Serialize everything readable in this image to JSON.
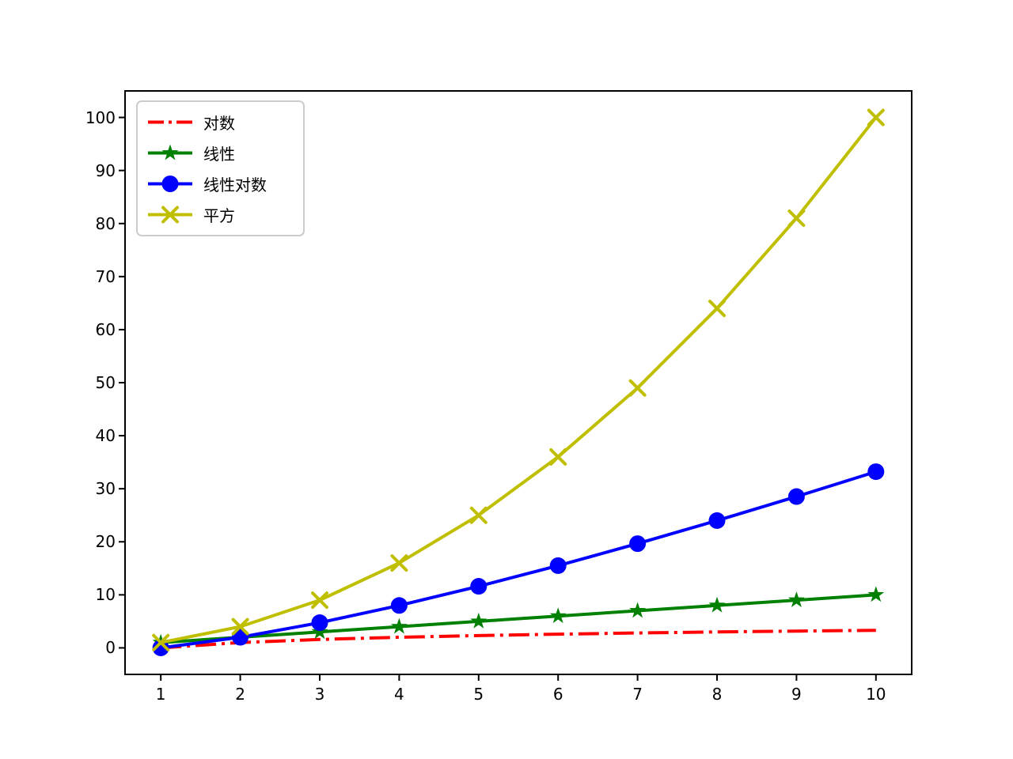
{
  "chart_data": {
    "type": "line",
    "title": "",
    "xlabel": "",
    "ylabel": "",
    "x": [
      1,
      2,
      3,
      4,
      5,
      6,
      7,
      8,
      9,
      10
    ],
    "series": [
      {
        "name": "对数",
        "color": "#ff0000",
        "linestyle": "dashdot",
        "marker": "none",
        "values": [
          0,
          1,
          1.585,
          2,
          2.322,
          2.585,
          2.807,
          3,
          3.17,
          3.322
        ]
      },
      {
        "name": "线性",
        "color": "#008000",
        "linestyle": "solid",
        "marker": "star",
        "values": [
          1,
          2,
          3,
          4,
          5,
          6,
          7,
          8,
          9,
          10
        ]
      },
      {
        "name": "线性对数",
        "color": "#0000ff",
        "linestyle": "solid",
        "marker": "circle",
        "values": [
          0,
          2,
          4.755,
          8,
          11.61,
          15.51,
          19.651,
          24,
          28.529,
          33.219
        ]
      },
      {
        "name": "平方",
        "color": "#bfbf00",
        "linestyle": "solid",
        "marker": "x",
        "values": [
          1,
          4,
          9,
          16,
          25,
          36,
          49,
          64,
          81,
          100
        ]
      }
    ],
    "xticks": [
      1,
      2,
      3,
      4,
      5,
      6,
      7,
      8,
      9,
      10
    ],
    "yticks": [
      0,
      10,
      20,
      30,
      40,
      50,
      60,
      70,
      80,
      90,
      100
    ],
    "xlim": [
      0.55,
      10.45
    ],
    "ylim": [
      -5,
      105
    ],
    "grid": false,
    "legend_position": "upper-left",
    "colors": {
      "spine": "#000000",
      "legend_border": "#cccccc",
      "background": "#ffffff"
    }
  }
}
